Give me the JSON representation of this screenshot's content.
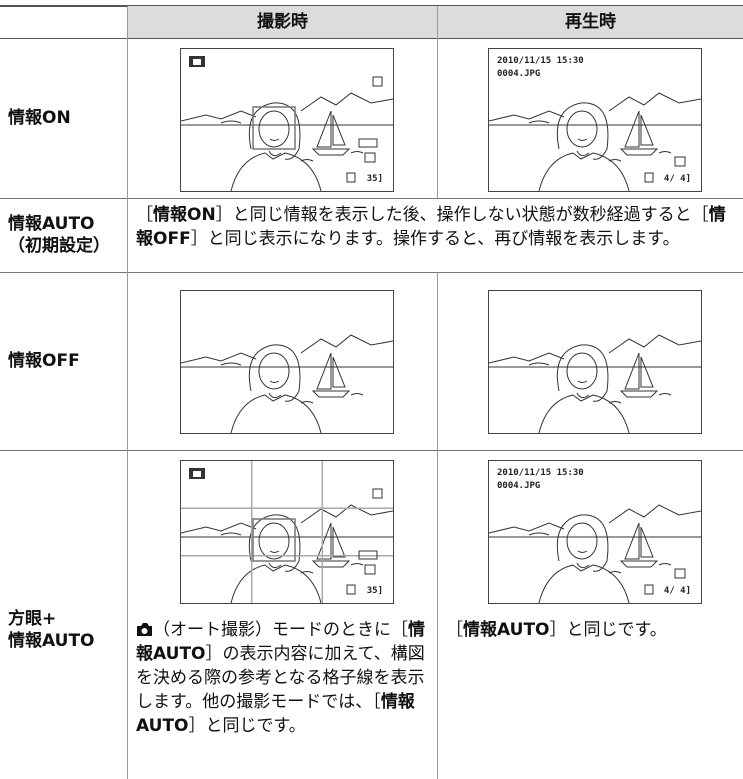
{
  "header": {
    "columns": [
      "撮影時",
      "再生時"
    ]
  },
  "screens": {
    "shooting": {
      "frames": "35]"
    },
    "playback": {
      "date": "2010/11/15 15:30",
      "file": "0004.JPG",
      "count": "4/ 4]"
    }
  },
  "rows": [
    {
      "label": [
        "情報ON"
      ]
    },
    {
      "label": [
        "情報AUTO",
        "（初期設定）"
      ],
      "text": [
        {
          "text": "［"
        },
        {
          "text": "情報ON",
          "bold": true
        },
        {
          "text": "］と同じ情報を表示した後、操作しない状態が数秒経過すると［"
        },
        {
          "text": "情報OFF",
          "bold": true
        },
        {
          "text": "］と同じ表示になります。操作すると、再び情報を表示します。"
        }
      ]
    },
    {
      "label": [
        "情報OFF"
      ]
    },
    {
      "label": [
        "方眼+",
        "情報AUTO"
      ],
      "shooting_text": [
        {
          "text": "（オート撮影）モードのときに［"
        },
        {
          "text": "情報AUTO",
          "bold": true
        },
        {
          "text": "］の表示内容に加えて、構図を決める際の参考となる格子線を表示します。他の撮影モードでは、［"
        },
        {
          "text": "情報AUTO",
          "bold": true
        },
        {
          "text": "］と同じです。"
        }
      ],
      "playback_text": [
        {
          "text": "［"
        },
        {
          "text": "情報AUTO",
          "bold": true
        },
        {
          "text": "］と同じです。"
        }
      ]
    }
  ]
}
